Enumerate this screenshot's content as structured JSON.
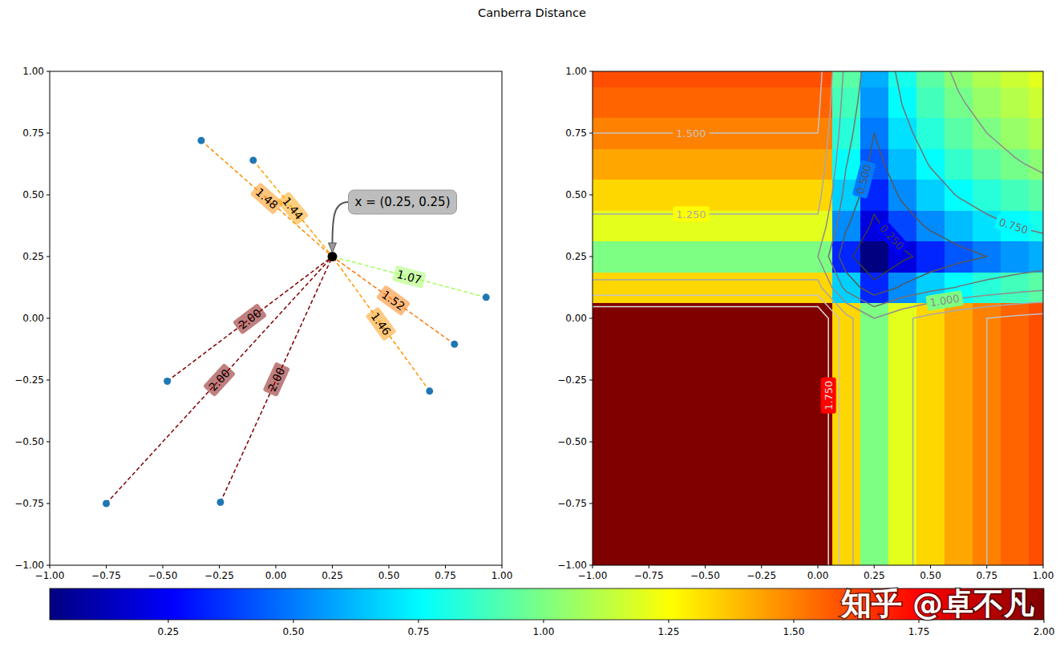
{
  "title": "Canberra Distance",
  "watermark": "知乎 @卓不凡",
  "chart_data": [
    {
      "type": "scatter",
      "x": [
        -0.33,
        -0.1,
        0.93,
        0.79,
        0.68,
        -0.48,
        -0.75,
        -0.245
      ],
      "values": [
        0.72,
        0.64,
        0.085,
        -0.105,
        -0.295,
        -0.255,
        -0.75,
        -0.745
      ],
      "distances": [
        1.48,
        1.44,
        1.07,
        1.52,
        1.46,
        2.0,
        2.0,
        2.0
      ],
      "distance_labels": [
        "1.48",
        "1.44",
        "1.07",
        "1.52",
        "1.46",
        "2.00",
        "2.00",
        "2.00"
      ],
      "center": {
        "x": 0.25,
        "y": 0.25,
        "label": "x = (0.25, 0.25)"
      },
      "color": "#1f77b4",
      "line_style": "dashed",
      "xlim": [
        -1,
        1
      ],
      "ylim": [
        -1,
        1
      ],
      "xticks": [
        {
          "value": -1,
          "label": "−1.00"
        },
        {
          "value": -0.75,
          "label": "−0.75"
        },
        {
          "value": -0.5,
          "label": "−0.50"
        },
        {
          "value": -0.25,
          "label": "−0.25"
        },
        {
          "value": 0,
          "label": "0.00"
        },
        0.25,
        {
          "value": 0.5,
          "label": "0.50"
        },
        0.75,
        {
          "value": 1,
          "label": "1.00"
        }
      ],
      "yticks": [
        {
          "value": -1,
          "label": "−1.00"
        },
        {
          "value": -0.75,
          "label": "−0.75"
        },
        {
          "value": -0.5,
          "label": "−0.50"
        },
        {
          "value": -0.25,
          "label": "−0.25"
        },
        {
          "value": 0,
          "label": "0.00"
        },
        0.25,
        {
          "value": 0.5,
          "label": "0.50"
        },
        0.75,
        {
          "value": 1,
          "label": "1.00"
        }
      ]
    },
    {
      "type": "heatmap",
      "x": [
        -1,
        -0.875,
        -0.75,
        -0.625,
        -0.5,
        -0.375,
        -0.25,
        -0.125,
        0,
        0.125,
        0.25,
        0.375,
        0.5,
        0.625,
        0.75,
        0.875,
        1
      ],
      "y": [
        -1,
        -0.875,
        -0.75,
        -0.625,
        -0.5,
        -0.375,
        -0.25,
        -0.125,
        0,
        0.125,
        0.25,
        0.375,
        0.5,
        0.625,
        0.75,
        0.875,
        1
      ],
      "cells": [
        [
          2,
          2,
          2,
          2,
          2,
          2,
          2,
          2,
          2,
          1.333,
          1,
          1.2,
          1.333,
          1.429,
          1.5,
          1.556,
          1.6
        ],
        [
          2,
          2,
          2,
          2,
          2,
          2,
          2,
          2,
          2,
          1.333,
          1,
          1.2,
          1.333,
          1.429,
          1.5,
          1.556,
          1.6
        ],
        [
          2,
          2,
          2,
          2,
          2,
          2,
          2,
          2,
          2,
          1.333,
          1,
          1.2,
          1.333,
          1.429,
          1.5,
          1.556,
          1.6
        ],
        [
          2,
          2,
          2,
          2,
          2,
          2,
          2,
          2,
          2,
          1.333,
          1,
          1.2,
          1.333,
          1.429,
          1.5,
          1.556,
          1.6
        ],
        [
          2,
          2,
          2,
          2,
          2,
          2,
          2,
          2,
          2,
          1.333,
          1,
          1.2,
          1.333,
          1.429,
          1.5,
          1.556,
          1.6
        ],
        [
          2,
          2,
          2,
          2,
          2,
          2,
          2,
          2,
          2,
          1.333,
          1,
          1.2,
          1.333,
          1.429,
          1.5,
          1.556,
          1.6
        ],
        [
          2,
          2,
          2,
          2,
          2,
          2,
          2,
          2,
          2,
          1.333,
          1,
          1.2,
          1.333,
          1.429,
          1.5,
          1.556,
          1.6
        ],
        [
          2,
          2,
          2,
          2,
          2,
          2,
          2,
          2,
          2,
          1.333,
          1,
          1.2,
          1.333,
          1.429,
          1.5,
          1.556,
          1.6
        ],
        [
          2,
          2,
          2,
          2,
          2,
          2,
          2,
          2,
          2,
          1.333,
          1,
          1.2,
          1.333,
          1.429,
          1.5,
          1.556,
          1.6
        ],
        [
          1.333,
          1.333,
          1.333,
          1.333,
          1.333,
          1.333,
          1.333,
          1.333,
          1.333,
          0.667,
          0.333,
          0.533,
          0.667,
          0.762,
          0.833,
          0.889,
          0.933
        ],
        [
          1,
          1,
          1,
          1,
          1,
          1,
          1,
          1,
          1,
          0.333,
          0,
          0.2,
          0.333,
          0.429,
          0.5,
          0.556,
          0.6
        ],
        [
          1.2,
          1.2,
          1.2,
          1.2,
          1.2,
          1.2,
          1.2,
          1.2,
          1.2,
          0.533,
          0.2,
          0.4,
          0.533,
          0.629,
          0.7,
          0.756,
          0.8
        ],
        [
          1.333,
          1.333,
          1.333,
          1.333,
          1.333,
          1.333,
          1.333,
          1.333,
          1.333,
          0.667,
          0.333,
          0.533,
          0.667,
          0.762,
          0.833,
          0.889,
          0.933
        ],
        [
          1.429,
          1.429,
          1.429,
          1.429,
          1.429,
          1.429,
          1.429,
          1.429,
          1.429,
          0.762,
          0.429,
          0.629,
          0.762,
          0.857,
          0.929,
          0.985,
          1.029
        ],
        [
          1.5,
          1.5,
          1.5,
          1.5,
          1.5,
          1.5,
          1.5,
          1.5,
          1.5,
          0.833,
          0.5,
          0.7,
          0.833,
          0.929,
          1,
          1.056,
          1.1
        ],
        [
          1.556,
          1.556,
          1.556,
          1.556,
          1.556,
          1.556,
          1.556,
          1.556,
          1.556,
          0.889,
          0.556,
          0.756,
          0.889,
          0.985,
          1.056,
          1.111,
          1.156
        ],
        [
          1.6,
          1.6,
          1.6,
          1.6,
          1.6,
          1.6,
          1.6,
          1.6,
          1.6,
          0.933,
          0.6,
          0.8,
          0.933,
          1.029,
          1.1,
          1.156,
          1.2
        ]
      ],
      "contour_levels": [
        {
          "value": 0.25,
          "label": "0.250"
        },
        {
          "value": 0.5,
          "label": "0.500"
        },
        {
          "value": 0.75,
          "label": "0.750"
        },
        {
          "value": 1,
          "label": "1.000"
        },
        {
          "value": 1.25,
          "label": "1.250"
        },
        {
          "value": 1.5,
          "label": "1.500"
        },
        {
          "value": 1.75,
          "label": "1.750"
        }
      ],
      "colorbar_range": [
        0.013,
        2
      ],
      "colorbar_ticks": [
        0.25,
        {
          "value": 0.5,
          "label": "0.50"
        },
        0.75,
        {
          "value": 1,
          "label": "1.00"
        },
        1.25,
        {
          "value": 1.5,
          "label": "1.50"
        },
        1.75,
        {
          "value": 2,
          "label": "2.00"
        }
      ],
      "xlim": [
        -1,
        1
      ],
      "ylim": [
        -1,
        1
      ],
      "xticks": [
        {
          "value": -1,
          "label": "−1.00"
        },
        {
          "value": -0.75,
          "label": "−0.75"
        },
        {
          "value": -0.5,
          "label": "−0.50"
        },
        {
          "value": -0.25,
          "label": "−0.25"
        },
        {
          "value": 0,
          "label": "0.00"
        },
        0.25,
        {
          "value": 0.5,
          "label": "0.50"
        },
        0.75,
        {
          "value": 1,
          "label": "1.00"
        }
      ],
      "yticks": [
        {
          "value": -1,
          "label": "−1.00"
        },
        {
          "value": -0.75,
          "label": "−0.75"
        },
        {
          "value": -0.5,
          "label": "−0.50"
        },
        {
          "value": -0.25,
          "label": "−0.25"
        },
        {
          "value": 0,
          "label": "0.00"
        },
        0.25,
        {
          "value": 0.5,
          "label": "0.50"
        },
        0.75,
        {
          "value": 1,
          "label": "1.00"
        }
      ]
    }
  ]
}
